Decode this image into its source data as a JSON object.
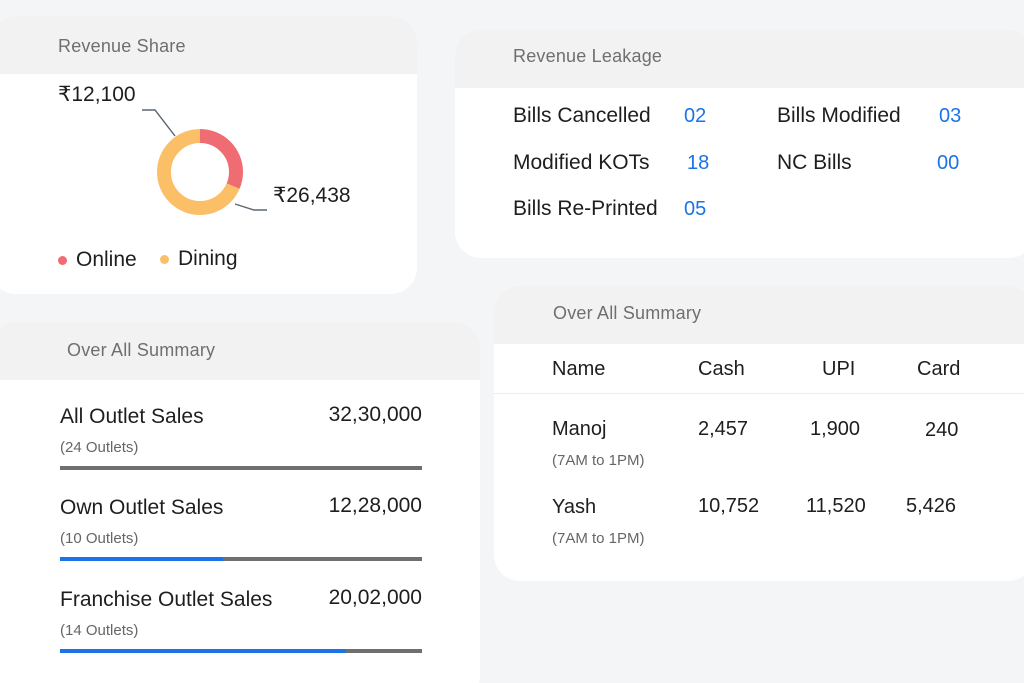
{
  "revenue_share": {
    "title": "Revenue Share",
    "online_value": "₹12,100",
    "dining_value": "₹26,438",
    "online_label": "Online",
    "dining_label": "Dining",
    "online_share": 0.314,
    "dining_share": 0.686,
    "colors": {
      "online": "#ee6c72",
      "dining": "#fbbf68"
    }
  },
  "revenue_leakage": {
    "title": "Revenue Leakage",
    "items": [
      {
        "label": "Bills Cancelled",
        "value": "02"
      },
      {
        "label": "Modified KOTs",
        "value": "18"
      },
      {
        "label": "Bills Re-Printed",
        "value": "05"
      },
      {
        "label": "Bills Modified",
        "value": "03"
      },
      {
        "label": "NC Bills",
        "value": "00"
      }
    ],
    "value_color": "#1a73e8"
  },
  "outlet_summary": {
    "title": "Over All Summary",
    "rows": [
      {
        "name": "All Outlet Sales",
        "amount": "32,30,000",
        "outlets": "(24 Outlets)",
        "progress": 0
      },
      {
        "name": "Own Outlet Sales",
        "amount": "12,28,000",
        "outlets": "(10 Outlets)",
        "progress": 0.45
      },
      {
        "name": "Franchise Outlet Sales",
        "amount": "20,02,000",
        "outlets": "(14 Outlets)",
        "progress": 0.79
      }
    ],
    "bar_colors": {
      "track": "#6f6f6f",
      "fill": "#1a73e8"
    }
  },
  "staff_summary": {
    "title": "Over All Summary",
    "columns": [
      "Name",
      "Cash",
      "UPI",
      "Card"
    ],
    "rows": [
      {
        "name": "Manoj",
        "shift": "(7AM to 1PM)",
        "cash": "2,457",
        "upi": "1,900",
        "card": "240"
      },
      {
        "name": "Yash",
        "shift": "(7AM to 1PM)",
        "cash": "10,752",
        "upi": "11,520",
        "card": "5,426"
      }
    ]
  }
}
